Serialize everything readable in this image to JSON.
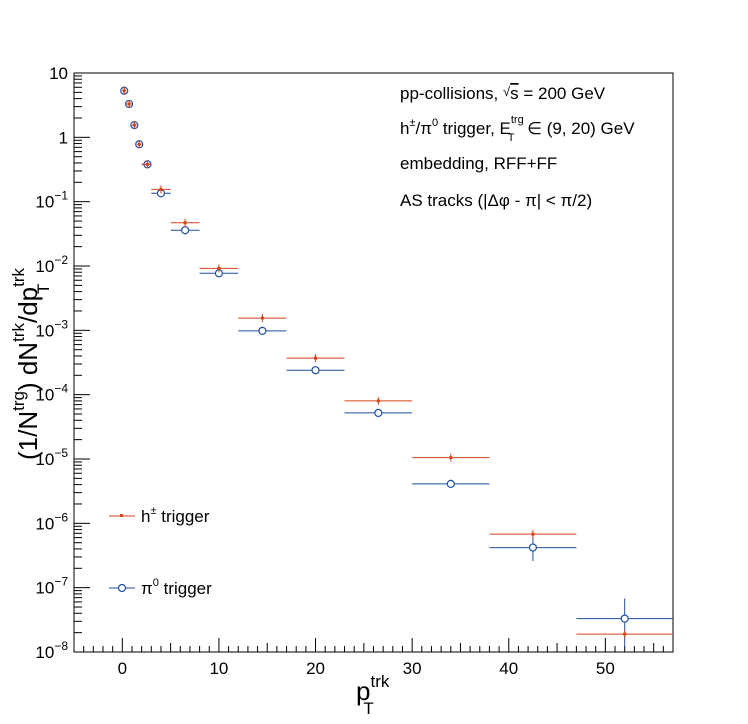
{
  "chart_data": {
    "type": "scatter",
    "xlabel": "p",
    "xlabel_sup": "trk",
    "xlabel_sub": "T",
    "ylabel_parts": {
      "lead": "(1/N",
      "sup1": "trg",
      "mid": ") dN",
      "sup2": "trk",
      "mid2": "/dp",
      "sup3": "trk",
      "sub3": "T"
    },
    "x_range": [
      -5,
      57
    ],
    "y_range": [
      1e-08,
      10
    ],
    "y_scale": "log",
    "x_ticks": [
      0,
      10,
      20,
      30,
      40,
      50
    ],
    "y_ticks": [
      {
        "value": 10,
        "label": "10",
        "sup": ""
      },
      {
        "value": 1,
        "label": "1",
        "sup": ""
      },
      {
        "value": 0.1,
        "label": "10",
        "sup": "−1"
      },
      {
        "value": 0.01,
        "label": "10",
        "sup": "−2"
      },
      {
        "value": 0.001,
        "label": "10",
        "sup": "−3"
      },
      {
        "value": 0.0001,
        "label": "10",
        "sup": "−4"
      },
      {
        "value": 1e-05,
        "label": "10",
        "sup": "−5"
      },
      {
        "value": 1e-06,
        "label": "10",
        "sup": "−6"
      },
      {
        "value": 1e-07,
        "label": "10",
        "sup": "−7"
      },
      {
        "value": 1e-08,
        "label": "10",
        "sup": "−8"
      }
    ],
    "grid": false,
    "legend_position": "bottom-left",
    "annotations": [
      {
        "id": "collisions",
        "text": "pp-collisions, √s = 200 GeV"
      },
      {
        "id": "trigger",
        "text": "h±/π0 trigger, E_T^trg ∈ (9, 20) GeV"
      },
      {
        "id": "embedding",
        "text": "embedding, RFF+FF"
      },
      {
        "id": "tracks",
        "text": "AS tracks (|Δφ - π| < π/2)"
      }
    ],
    "series": [
      {
        "name": "h± trigger",
        "name_base": "h",
        "name_sup": "±",
        "name_rest": " trigger",
        "color": "#d4451a",
        "marker": "square",
        "points": [
          {
            "x": 0.2,
            "xlo": 0.0,
            "xhi": 0.4,
            "y": 5.3
          },
          {
            "x": 0.7,
            "xlo": 0.4,
            "xhi": 1.0,
            "y": 3.3
          },
          {
            "x": 1.25,
            "xlo": 1.0,
            "xhi": 1.5,
            "y": 1.55
          },
          {
            "x": 1.75,
            "xlo": 1.5,
            "xhi": 2.0,
            "y": 0.78
          },
          {
            "x": 2.6,
            "xlo": 2.0,
            "xhi": 3.0,
            "y": 0.38
          },
          {
            "x": 4.0,
            "xlo": 3.0,
            "xhi": 5.0,
            "y": 0.155
          },
          {
            "x": 6.5,
            "xlo": 5.0,
            "xhi": 8.0,
            "y": 0.047
          },
          {
            "x": 10.0,
            "xlo": 8.0,
            "xhi": 12.0,
            "y": 0.0092
          },
          {
            "x": 14.5,
            "xlo": 12.0,
            "xhi": 17.0,
            "y": 0.00155
          },
          {
            "x": 20.0,
            "xlo": 17.0,
            "xhi": 23.0,
            "y": 0.00037
          },
          {
            "x": 26.5,
            "xlo": 23.0,
            "xhi": 30.0,
            "y": 8e-05
          },
          {
            "x": 34.0,
            "xlo": 30.0,
            "xhi": 38.0,
            "y": 1.05e-05
          },
          {
            "x": 42.5,
            "xlo": 38.0,
            "xhi": 47.0,
            "y": 6.8e-07
          },
          {
            "x": 52.0,
            "xlo": 47.0,
            "xhi": 57.0,
            "y": 1.9e-08
          }
        ]
      },
      {
        "name": "π0 trigger",
        "name_base": "π",
        "name_sup": "0",
        "name_rest": " trigger",
        "color": "#1f4fa0",
        "marker": "open-circle",
        "points": [
          {
            "x": 0.2,
            "xlo": 0.0,
            "xhi": 0.4,
            "y": 5.3
          },
          {
            "x": 0.7,
            "xlo": 0.4,
            "xhi": 1.0,
            "y": 3.3
          },
          {
            "x": 1.25,
            "xlo": 1.0,
            "xhi": 1.5,
            "y": 1.55
          },
          {
            "x": 1.75,
            "xlo": 1.5,
            "xhi": 2.0,
            "y": 0.78
          },
          {
            "x": 2.6,
            "xlo": 2.0,
            "xhi": 3.0,
            "y": 0.38
          },
          {
            "x": 4.0,
            "xlo": 3.0,
            "xhi": 5.0,
            "y": 0.135
          },
          {
            "x": 6.5,
            "xlo": 5.0,
            "xhi": 8.0,
            "y": 0.036
          },
          {
            "x": 10.0,
            "xlo": 8.0,
            "xhi": 12.0,
            "y": 0.0077
          },
          {
            "x": 14.5,
            "xlo": 12.0,
            "xhi": 17.0,
            "y": 0.00098
          },
          {
            "x": 20.0,
            "xlo": 17.0,
            "xhi": 23.0,
            "y": 0.00024
          },
          {
            "x": 26.5,
            "xlo": 23.0,
            "xhi": 30.0,
            "y": 5.2e-05
          },
          {
            "x": 34.0,
            "xlo": 30.0,
            "xhi": 38.0,
            "y": 4.1e-06
          },
          {
            "x": 42.5,
            "xlo": 38.0,
            "xhi": 47.0,
            "y": 4.2e-07,
            "ylo": 2.6e-07,
            "yhi": 6.5e-07
          },
          {
            "x": 52.0,
            "xlo": 47.0,
            "xhi": 57.0,
            "y": 3.3e-08,
            "ylo": 1.2e-08,
            "yhi": 6.8e-08
          }
        ]
      }
    ]
  }
}
